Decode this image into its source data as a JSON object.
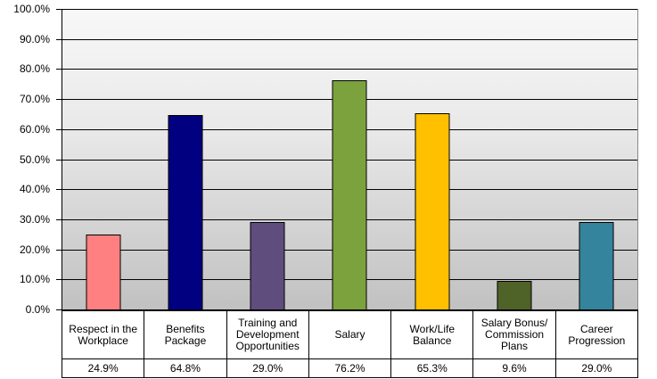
{
  "chart_data": {
    "type": "bar",
    "title": "",
    "xlabel": "",
    "ylabel": "",
    "ylim": [
      0,
      100
    ],
    "grid": true,
    "legend": false,
    "categories": [
      "Respect in the Workplace",
      "Benefits Package",
      "Training and Development Opportunities",
      "Salary",
      "Work/Life Balance",
      "Salary Bonus/Commission Plans",
      "Career Progression"
    ],
    "values": [
      24.9,
      64.8,
      29.0,
      76.2,
      65.3,
      9.6,
      29.0
    ],
    "value_labels": [
      "24.9%",
      "64.8%",
      "29.0%",
      "76.2%",
      "65.3%",
      "9.6%",
      "29.0%"
    ],
    "category_display": [
      "Respect in the\nWorkplace",
      "Benefits\nPackage",
      "Training and\nDevelopment\nOpportunities",
      "Salary",
      "Work/Life\nBalance",
      "Salary Bonus/\nCommission\nPlans",
      "Career\nProgression"
    ],
    "bar_colors": [
      "#FF8080",
      "#000080",
      "#5F4D7E",
      "#7CA23E",
      "#FFC000",
      "#4F6228",
      "#35849D"
    ],
    "bar_border_color": "#000000",
    "gridline_color": "#000000",
    "plot_bg_top": "#f8f8f8",
    "plot_bg_bottom": "#c1c1c1",
    "ytick_labels_top_to_bottom": [
      "100.0%",
      "90.0%",
      "80.0%",
      "70.0%",
      "60.0%",
      "50.0%",
      "40.0%",
      "30.0%",
      "20.0%",
      "10.0%",
      "0.0%"
    ],
    "data_table_shown": true
  }
}
